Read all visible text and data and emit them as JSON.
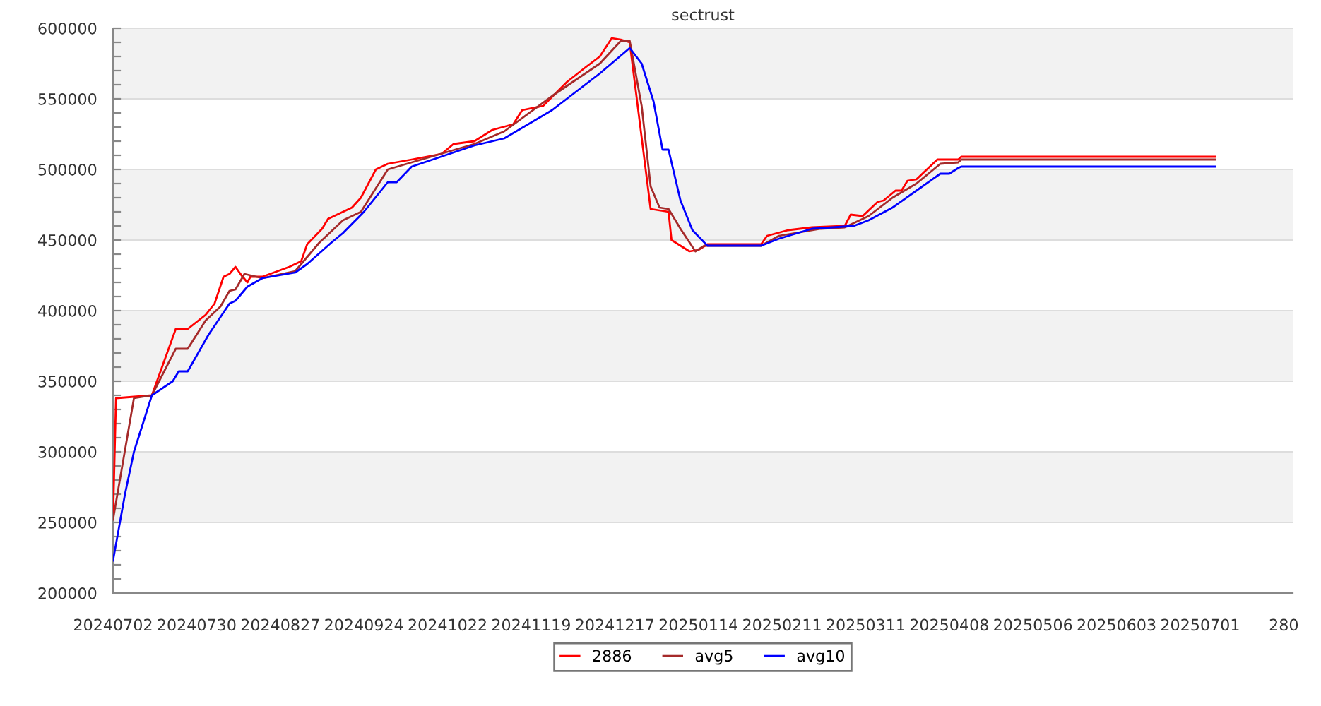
{
  "chart_data": {
    "type": "line",
    "title": "sectrust",
    "series": [
      {
        "name": "2886",
        "color": "#ff0000",
        "x": [
          "2024-07-02",
          "2024-07-03",
          "2024-07-15",
          "2024-07-23",
          "2024-07-27",
          "2024-08-02",
          "2024-08-05",
          "2024-08-08",
          "2024-08-10",
          "2024-08-12",
          "2024-08-14",
          "2024-08-16",
          "2024-08-17",
          "2024-08-21",
          "2024-08-30",
          "2024-09-03",
          "2024-09-05",
          "2024-09-10",
          "2024-09-12",
          "2024-09-17",
          "2024-09-20",
          "2024-09-23",
          "2024-09-28",
          "2024-10-02",
          "2024-10-10",
          "2024-10-20",
          "2024-10-24",
          "2024-10-31",
          "2024-11-06",
          "2024-11-13",
          "2024-11-16",
          "2024-11-23",
          "2024-12-01",
          "2024-12-07",
          "2024-12-12",
          "2024-12-16",
          "2024-12-19",
          "2024-12-22",
          "2024-12-29",
          "2025-01-04",
          "2025-01-05",
          "2025-01-11",
          "2025-01-14",
          "2025-01-17",
          "2025-02-04",
          "2025-02-06",
          "2025-02-13",
          "2025-02-21",
          "2025-03-04",
          "2025-03-06",
          "2025-03-10",
          "2025-03-15",
          "2025-03-17",
          "2025-03-21",
          "2025-03-23",
          "2025-03-25",
          "2025-03-28",
          "2025-04-04",
          "2025-04-11",
          "2025-04-12",
          "2025-07-06"
        ],
        "values": [
          253000,
          338000,
          340000,
          387000,
          387000,
          397000,
          405000,
          424000,
          426000,
          431000,
          425000,
          420000,
          424000,
          424000,
          431000,
          435000,
          447000,
          458000,
          465000,
          470000,
          473000,
          480000,
          500000,
          504000,
          507000,
          511000,
          518000,
          520000,
          528000,
          532000,
          542000,
          545000,
          562000,
          572000,
          580000,
          593000,
          592000,
          590000,
          472000,
          470000,
          450000,
          442000,
          443000,
          447000,
          447000,
          453000,
          457000,
          459000,
          460000,
          468000,
          467000,
          477000,
          478000,
          485000,
          485000,
          492000,
          493000,
          507000,
          507000,
          509000,
          509000
        ]
      },
      {
        "name": "avg5",
        "color": "#a52a2a",
        "x": [
          "2024-07-02",
          "2024-07-09",
          "2024-07-15",
          "2024-07-23",
          "2024-07-27",
          "2024-08-02",
          "2024-08-07",
          "2024-08-10",
          "2024-08-12",
          "2024-08-15",
          "2024-08-21",
          "2024-09-01",
          "2024-09-09",
          "2024-09-17",
          "2024-09-23",
          "2024-10-02",
          "2024-10-10",
          "2024-10-31",
          "2024-11-10",
          "2024-11-26",
          "2024-12-12",
          "2024-12-19",
          "2024-12-22",
          "2024-12-26",
          "2024-12-29",
          "2025-01-01",
          "2025-01-04",
          "2025-01-08",
          "2025-01-13",
          "2025-01-16",
          "2025-02-04",
          "2025-02-10",
          "2025-02-24",
          "2025-03-04",
          "2025-03-12",
          "2025-03-20",
          "2025-03-28",
          "2025-04-05",
          "2025-04-11",
          "2025-04-12",
          "2025-07-06"
        ],
        "values": [
          252000,
          338000,
          340000,
          373000,
          373000,
          393000,
          403000,
          414000,
          415000,
          426000,
          423000,
          428000,
          448000,
          464000,
          470000,
          500000,
          505000,
          518000,
          527000,
          552000,
          575000,
          591000,
          591000,
          545000,
          488000,
          473000,
          472000,
          458000,
          442000,
          446000,
          446000,
          453000,
          458000,
          459000,
          467000,
          480000,
          490000,
          504000,
          505000,
          507000,
          507000
        ]
      },
      {
        "name": "avg10",
        "color": "#0000ff",
        "x": [
          "2024-07-02",
          "2024-07-06",
          "2024-07-09",
          "2024-07-15",
          "2024-07-22",
          "2024-07-24",
          "2024-07-27",
          "2024-08-03",
          "2024-08-10",
          "2024-08-12",
          "2024-08-16",
          "2024-08-21",
          "2024-09-01",
          "2024-09-05",
          "2024-09-13",
          "2024-09-17",
          "2024-09-24",
          "2024-10-02",
          "2024-10-05",
          "2024-10-10",
          "2024-10-31",
          "2024-11-10",
          "2024-11-26",
          "2024-12-12",
          "2024-12-22",
          "2024-12-26",
          "2024-12-30",
          "2025-01-02",
          "2025-01-04",
          "2025-01-08",
          "2025-01-12",
          "2025-01-17",
          "2025-02-04",
          "2025-02-10",
          "2025-02-21",
          "2025-03-07",
          "2025-03-12",
          "2025-03-20",
          "2025-03-28",
          "2025-04-05",
          "2025-04-08",
          "2025-04-11",
          "2025-04-12",
          "2025-07-06"
        ],
        "values": [
          223000,
          270000,
          300000,
          340000,
          350000,
          357000,
          357000,
          383000,
          405000,
          407000,
          417000,
          423000,
          427000,
          433000,
          448000,
          455000,
          470000,
          491000,
          491000,
          502000,
          517000,
          522000,
          542000,
          568000,
          586000,
          575000,
          548000,
          514000,
          514000,
          478000,
          457000,
          446000,
          446000,
          451000,
          458000,
          460000,
          464000,
          473000,
          485000,
          497000,
          497000,
          501000,
          502000,
          502000
        ]
      }
    ],
    "xlim": [
      "2024-07-02",
      "2025-08-01"
    ],
    "xticks": [
      {
        "value": "2024-07-02",
        "label": "20240702"
      },
      {
        "value": "2024-07-30",
        "label": "20240730"
      },
      {
        "value": "2024-08-27",
        "label": "20240827"
      },
      {
        "value": "2024-09-24",
        "label": "20240924"
      },
      {
        "value": "2024-10-22",
        "label": "20241022"
      },
      {
        "value": "2024-11-19",
        "label": "20241119"
      },
      {
        "value": "2024-12-17",
        "label": "20241217"
      },
      {
        "value": "2025-01-14",
        "label": "20250114"
      },
      {
        "value": "2025-02-11",
        "label": "20250211"
      },
      {
        "value": "2025-03-11",
        "label": "20250311"
      },
      {
        "value": "2025-04-08",
        "label": "20250408"
      },
      {
        "value": "2025-05-06",
        "label": "20250506"
      },
      {
        "value": "2025-06-03",
        "label": "20250603"
      },
      {
        "value": "2025-07-01",
        "label": "20250701"
      },
      {
        "value": "2025-07-29",
        "label": "280"
      }
    ],
    "ylim": [
      200000,
      600000
    ],
    "yticks": [
      200000,
      {
        "value": 210000,
        "label": null
      },
      {
        "value": 220000,
        "label": null
      },
      {
        "value": 230000,
        "label": null
      },
      {
        "value": 240000,
        "label": null
      },
      250000,
      {
        "value": 260000,
        "label": null
      },
      {
        "value": 270000,
        "label": null
      },
      {
        "value": 280000,
        "label": null
      },
      {
        "value": 290000,
        "label": null
      },
      300000,
      {
        "value": 310000,
        "label": null
      },
      {
        "value": 320000,
        "label": null
      },
      {
        "value": 330000,
        "label": null
      },
      {
        "value": 340000,
        "label": null
      },
      350000,
      {
        "value": 360000,
        "label": null
      },
      {
        "value": 370000,
        "label": null
      },
      {
        "value": 380000,
        "label": null
      },
      {
        "value": 390000,
        "label": null
      },
      400000,
      {
        "value": 410000,
        "label": null
      },
      {
        "value": 420000,
        "label": null
      },
      {
        "value": 430000,
        "label": null
      },
      {
        "value": 440000,
        "label": null
      },
      450000,
      {
        "value": 460000,
        "label": null
      },
      {
        "value": 470000,
        "label": null
      },
      {
        "value": 480000,
        "label": null
      },
      {
        "value": 490000,
        "label": null
      },
      500000,
      {
        "value": 510000,
        "label": null
      },
      {
        "value": 520000,
        "label": null
      },
      {
        "value": 530000,
        "label": null
      },
      {
        "value": 540000,
        "label": null
      },
      550000,
      {
        "value": 560000,
        "label": null
      },
      {
        "value": 570000,
        "label": null
      },
      {
        "value": 580000,
        "label": null
      },
      {
        "value": 590000,
        "label": null
      },
      600000
    ],
    "bands": [
      {
        "axis": "y",
        "from": 250000,
        "to": 300000,
        "color": "#f2f2f2"
      },
      {
        "axis": "y",
        "from": 350000,
        "to": 400000,
        "color": "#f2f2f2"
      },
      {
        "axis": "y",
        "from": 450000,
        "to": 500000,
        "color": "#f2f2f2"
      },
      {
        "axis": "y",
        "from": 550000,
        "to": 600000,
        "color": "#f2f2f2"
      }
    ],
    "grid": "y",
    "legend": "bottom",
    "marker": "none",
    "line_style": "solid"
  }
}
